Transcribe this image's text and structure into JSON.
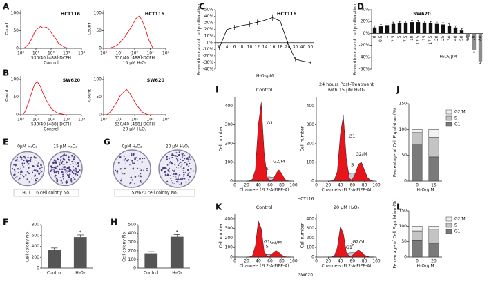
{
  "chart_data": [
    {
      "type": "line",
      "panel": "A",
      "title": "HCT116",
      "xlabel": "530/40 [488]-DCFH",
      "caption": "Control",
      "ylabel": "Count",
      "log_x": true,
      "color": "#e8141b",
      "x": [
        1.5,
        2,
        3,
        5,
        8,
        12,
        20,
        30,
        50,
        80,
        120,
        200,
        300,
        500,
        800,
        1500
      ],
      "values": [
        0,
        3,
        10,
        25,
        45,
        55,
        62,
        58,
        60,
        52,
        40,
        28,
        15,
        8,
        3,
        0
      ],
      "xlim": [
        1,
        10000
      ],
      "xticks": [
        {
          "value": 1,
          "label": "10⁰"
        },
        {
          "value": 10,
          "label": "10¹"
        },
        {
          "value": 100,
          "label": "10²"
        },
        {
          "value": 1000,
          "label": "10³"
        },
        {
          "value": 10000,
          "label": "10⁴"
        }
      ],
      "ylim": [
        0,
        110
      ],
      "yticks": [
        0,
        50,
        100
      ]
    },
    {
      "type": "line",
      "title": "HCT116",
      "xlabel": "530/40 [488]-DCFH",
      "caption": "15 μM H₂O₂",
      "ylabel": "Count",
      "log_x": true,
      "color": "#e8141b",
      "x": [
        1.5,
        2,
        3,
        5,
        8,
        12,
        20,
        30,
        50,
        80,
        120,
        200,
        300,
        500,
        800,
        1500
      ],
      "values": [
        0,
        0,
        2,
        5,
        10,
        18,
        28,
        40,
        55,
        70,
        85,
        92,
        80,
        55,
        25,
        0
      ],
      "xlim": [
        1,
        10000
      ],
      "xticks": [
        {
          "value": 1,
          "label": "10⁰"
        },
        {
          "value": 10,
          "label": "10¹"
        },
        {
          "value": 100,
          "label": "10²"
        },
        {
          "value": 1000,
          "label": "10³"
        },
        {
          "value": 10000,
          "label": "10⁴"
        }
      ],
      "ylim": [
        0,
        110
      ],
      "yticks": [
        0,
        50,
        100
      ]
    },
    {
      "type": "line",
      "panel": "B",
      "title": "SW620",
      "xlabel": "530/40 [488]-DCFH",
      "caption": "Control",
      "ylabel": "Count",
      "log_x": true,
      "color": "#e8141b",
      "x": [
        1.5,
        2,
        3,
        5,
        8,
        12,
        20,
        30,
        50,
        80,
        120,
        200,
        300,
        500,
        800,
        1500
      ],
      "values": [
        2,
        10,
        30,
        60,
        85,
        95,
        80,
        60,
        40,
        25,
        15,
        8,
        4,
        2,
        0,
        0
      ],
      "xlim": [
        1,
        10000
      ],
      "xticks": [
        {
          "value": 1,
          "label": "10⁰"
        },
        {
          "value": 10,
          "label": "10¹"
        },
        {
          "value": 100,
          "label": "10²"
        },
        {
          "value": 1000,
          "label": "10³"
        },
        {
          "value": 10000,
          "label": "10⁴"
        }
      ],
      "ylim": [
        0,
        110
      ],
      "yticks": [
        0,
        50,
        100
      ]
    },
    {
      "type": "line",
      "title": "SW620",
      "xlabel": "530/40 [488]-DCFH",
      "caption": "20 μM H₂O₂",
      "ylabel": "Count",
      "log_x": true,
      "color": "#e8141b",
      "x": [
        1.5,
        2,
        3,
        5,
        8,
        12,
        20,
        30,
        50,
        80,
        120,
        200,
        300,
        500,
        800,
        1500
      ],
      "values": [
        0,
        3,
        10,
        25,
        40,
        55,
        65,
        72,
        60,
        45,
        30,
        18,
        8,
        3,
        0,
        0
      ],
      "xlim": [
        1,
        10000
      ],
      "xticks": [
        {
          "value": 1,
          "label": "10⁰"
        },
        {
          "value": 10,
          "label": "10¹"
        },
        {
          "value": 100,
          "label": "10²"
        },
        {
          "value": 1000,
          "label": "10³"
        },
        {
          "value": 10000,
          "label": "10⁴"
        }
      ],
      "ylim": [
        0,
        110
      ],
      "yticks": [
        0,
        50,
        100
      ]
    },
    {
      "type": "line",
      "panel": "C",
      "title": "HCT116",
      "xlabel": "H₂O₂/μM",
      "ylabel": "Promotion rate of cell proliferation",
      "color": "#000000",
      "categories": [
        "0",
        "4",
        "6",
        "8",
        "10",
        "12",
        "14",
        "16",
        "18",
        "20",
        "30",
        "40",
        "50"
      ],
      "values": [
        -8,
        20,
        23,
        26,
        28,
        31,
        34,
        38,
        33,
        0,
        -25,
        -28,
        -30
      ],
      "errors": [
        3,
        4,
        4,
        4,
        4,
        4,
        4,
        5,
        4,
        3,
        3,
        2,
        2
      ],
      "ylim": [
        -40,
        50
      ],
      "yticks": [
        {
          "value": -40,
          "label": "-40%"
        },
        {
          "value": -30,
          "label": "-30%"
        },
        {
          "value": -20,
          "label": "-20%"
        },
        {
          "value": -10,
          "label": "-10%"
        },
        {
          "value": 0,
          "label": "0%"
        },
        {
          "value": 10,
          "label": "10%"
        },
        {
          "value": 20,
          "label": "20%"
        },
        {
          "value": 30,
          "label": "30%"
        },
        {
          "value": 40,
          "label": "40%"
        },
        {
          "value": 50,
          "label": "50%"
        }
      ]
    },
    {
      "type": "bar",
      "panel": "D",
      "title": "SW620",
      "xlabel": "H₂O₂/μM",
      "ylabel": "Promotion rate of cell proliferation",
      "color": "#111111",
      "negative_color": "#8c8c8c",
      "categories": [
        "0",
        "0.5",
        "1",
        "2.5",
        "5",
        "7.5",
        "10",
        "12.5",
        "15",
        "17.5",
        "20",
        "25",
        "30",
        "40",
        "50",
        "60",
        "70",
        "80"
      ],
      "values": [
        10,
        12,
        14,
        16,
        17,
        18,
        19,
        19,
        18,
        17,
        16,
        15,
        13,
        10,
        5,
        -5,
        -28,
        -47
      ],
      "errors": [
        3,
        3,
        3,
        3,
        3,
        3,
        3,
        3,
        3,
        3,
        3,
        3,
        3,
        3,
        3,
        3,
        3,
        3
      ],
      "ylim": [
        -60,
        40
      ],
      "yticks": [
        {
          "value": -60,
          "label": "-60%"
        },
        {
          "value": -40,
          "label": "-40%"
        },
        {
          "value": -20,
          "label": "-20%"
        },
        {
          "value": 0,
          "label": "0%"
        },
        {
          "value": 20,
          "label": "20%"
        },
        {
          "value": 40,
          "label": "40%"
        }
      ]
    },
    {
      "type": "image",
      "panel": "E",
      "labels": [
        "0μM H₂O₂",
        "15 μM H₂O₂"
      ],
      "caption": "HCT116 cell colony No."
    },
    {
      "type": "image",
      "panel": "G",
      "labels": [
        "0μM H₂O₂",
        "20 μM H₂O₂"
      ],
      "caption": "SW620 cell colony No."
    },
    {
      "type": "bar",
      "panel": "F",
      "ylabel": "Cell colony No.",
      "color": "#555555",
      "annotation": "*",
      "categories": [
        "Control",
        "H₂O₂"
      ],
      "values": [
        340,
        570
      ],
      "errors": [
        30,
        40
      ],
      "ylim": [
        0,
        800
      ],
      "yticks": [
        0,
        200,
        400,
        600,
        800
      ]
    },
    {
      "type": "bar",
      "panel": "H",
      "ylabel": "Cell colony No.",
      "color": "#555555",
      "annotation": "*",
      "categories": [
        "Control",
        "H₂O₂"
      ],
      "values": [
        170,
        360
      ],
      "errors": [
        20,
        25
      ],
      "ylim": [
        0,
        500
      ],
      "yticks": [
        0,
        100,
        200,
        300,
        400,
        500
      ]
    },
    {
      "type": "area",
      "panel": "I",
      "title": [
        "Control"
      ],
      "xlabel": "Channels (FL2-A-PIPE-A)",
      "ylabel": "Cell number",
      "group_caption": "HCT116",
      "x": [
        20,
        25,
        30,
        35,
        40,
        45,
        50,
        55,
        60,
        65,
        70,
        75,
        80,
        85,
        90,
        95
      ],
      "xlim": [
        0,
        100
      ],
      "xticks": [
        0,
        20,
        40,
        60,
        80,
        100
      ],
      "ylim": [
        0,
        450
      ],
      "yticks": [
        0,
        100,
        200,
        300,
        400
      ],
      "series": [
        {
          "name": "G1",
          "color": "#e8141b",
          "values": [
            0,
            2,
            10,
            60,
            300,
            420,
            150,
            20,
            2,
            0,
            0,
            0,
            0,
            0,
            0,
            0
          ]
        },
        {
          "name": "S",
          "color": "#bfc8d8",
          "values": [
            0,
            0,
            0,
            2,
            8,
            15,
            20,
            22,
            22,
            20,
            15,
            10,
            5,
            2,
            0,
            0
          ]
        },
        {
          "name": "G2/M",
          "color": "#e8141b",
          "values": [
            0,
            0,
            0,
            0,
            0,
            0,
            0,
            0,
            2,
            10,
            40,
            60,
            40,
            10,
            2,
            0
          ]
        }
      ]
    },
    {
      "type": "area",
      "title": [
        "24 hours Post-Treatment",
        "with 15 μM H₂O₂"
      ],
      "xlabel": "Channels (FL2-A-PIPE-A)",
      "ylabel": "Cell number",
      "x": [
        20,
        25,
        30,
        35,
        40,
        45,
        50,
        55,
        60,
        65,
        70,
        75,
        80,
        85,
        90,
        95
      ],
      "xlim": [
        0,
        100
      ],
      "xticks": [
        0,
        20,
        40,
        60,
        80,
        100
      ],
      "ylim": [
        0,
        450
      ],
      "yticks": [
        0,
        100,
        200,
        300,
        400
      ],
      "series": [
        {
          "name": "G1",
          "color": "#e8141b",
          "values": [
            0,
            2,
            8,
            50,
            250,
            350,
            120,
            15,
            2,
            0,
            0,
            0,
            0,
            0,
            0,
            0
          ]
        },
        {
          "name": "S",
          "color": "#bfc8d8",
          "values": [
            0,
            0,
            0,
            3,
            12,
            25,
            35,
            40,
            42,
            40,
            35,
            25,
            12,
            4,
            0,
            0
          ]
        },
        {
          "name": "G2/M",
          "color": "#e8141b",
          "values": [
            0,
            0,
            0,
            0,
            0,
            0,
            0,
            2,
            10,
            40,
            90,
            100,
            60,
            20,
            5,
            0
          ]
        }
      ]
    },
    {
      "type": "stacked_bar",
      "panel": "J",
      "xlabel": "H₂O₂/μM",
      "ylabel": "Percentage of Cell Population (%)",
      "categories": [
        "0",
        "15"
      ],
      "ylim": [
        0,
        150
      ],
      "yticks": [
        0,
        50,
        100,
        150
      ],
      "series": [
        {
          "name": "G1",
          "color": "#7a7a7a",
          "values": [
            72,
            47
          ]
        },
        {
          "name": "S",
          "color": "#c4c4c4",
          "values": [
            22,
            38
          ]
        },
        {
          "name": "G2/M",
          "color": "#f2f2f2",
          "values": [
            6,
            15
          ]
        }
      ]
    },
    {
      "type": "area",
      "panel": "K",
      "title": [
        "Control"
      ],
      "xlabel": "Channels (FL2-A-PIPE-A)",
      "ylabel": "Cell number",
      "group_caption": "SW620",
      "x": [
        20,
        25,
        30,
        35,
        40,
        45,
        50,
        55,
        60,
        65,
        70,
        75,
        80,
        85,
        90,
        95
      ],
      "xlim": [
        0,
        100
      ],
      "xticks": [
        0,
        20,
        40,
        60,
        80,
        100
      ],
      "ylim": [
        0,
        450
      ],
      "yticks": [
        0,
        100,
        200,
        300,
        400
      ],
      "series": [
        {
          "name": "G1",
          "color": "#e8141b",
          "values": [
            0,
            2,
            15,
            120,
            380,
            300,
            60,
            8,
            1,
            0,
            0,
            0,
            0,
            0,
            0,
            0
          ]
        },
        {
          "name": "S",
          "color": "#bfc8d8",
          "values": [
            0,
            0,
            0,
            3,
            10,
            18,
            24,
            26,
            26,
            24,
            20,
            14,
            8,
            3,
            0,
            0
          ]
        },
        {
          "name": "G2/M",
          "color": "#e8141b",
          "values": [
            0,
            0,
            0,
            0,
            0,
            0,
            0,
            2,
            15,
            45,
            70,
            50,
            20,
            5,
            0,
            0
          ]
        }
      ]
    },
    {
      "type": "area",
      "title": [
        "20 μM H₂O₂"
      ],
      "xlabel": "Channels (FL2-A-PIPE-A)",
      "ylabel": "Cell number",
      "x": [
        20,
        25,
        30,
        35,
        40,
        45,
        50,
        55,
        60,
        65,
        70,
        75,
        80,
        85,
        90,
        95
      ],
      "xlim": [
        0,
        100
      ],
      "xticks": [
        0,
        20,
        40,
        60,
        80,
        100
      ],
      "ylim": [
        0,
        450
      ],
      "yticks": [
        0,
        100,
        200,
        300,
        400
      ],
      "series": [
        {
          "name": "G1",
          "color": "#e8141b",
          "values": [
            0,
            2,
            12,
            100,
            320,
            250,
            50,
            6,
            1,
            0,
            0,
            0,
            0,
            0,
            0,
            0
          ]
        },
        {
          "name": "S",
          "color": "#bfc8d8",
          "values": [
            0,
            0,
            0,
            4,
            14,
            28,
            38,
            44,
            46,
            44,
            38,
            28,
            15,
            5,
            0,
            0
          ]
        },
        {
          "name": "G2/M",
          "color": "#e8141b",
          "values": [
            0,
            0,
            0,
            0,
            0,
            0,
            0,
            3,
            18,
            50,
            75,
            55,
            22,
            6,
            0,
            0
          ]
        }
      ]
    },
    {
      "type": "stacked_bar",
      "panel": "L",
      "xlabel": "H₂O₂/μM",
      "ylabel": "Percentage of Cell Population (%)",
      "categories": [
        "0",
        "20"
      ],
      "ylim": [
        0,
        150
      ],
      "yticks": [
        0,
        50,
        100,
        150
      ],
      "series": [
        {
          "name": "G1",
          "color": "#7a7a7a",
          "values": [
            55,
            45
          ]
        },
        {
          "name": "S",
          "color": "#c4c4c4",
          "values": [
            30,
            45
          ]
        },
        {
          "name": "G2/M",
          "color": "#f2f2f2",
          "values": [
            15,
            10
          ]
        }
      ]
    }
  ]
}
